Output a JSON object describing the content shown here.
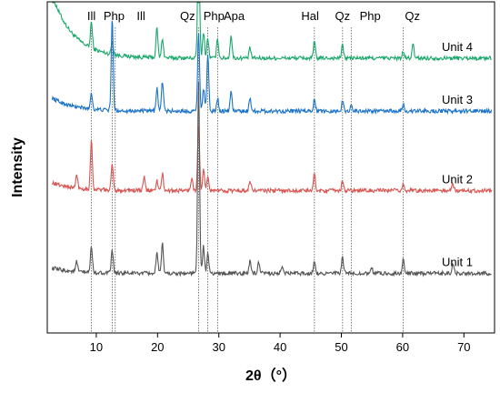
{
  "chart_data": {
    "type": "line",
    "title": "",
    "xlabel": "2θ（°）",
    "ylabel": "Intensity",
    "xlim": [
      2,
      75
    ],
    "xticks": [
      10,
      20,
      30,
      40,
      50,
      60,
      70
    ],
    "grid": false,
    "y_ticks_shown": false,
    "reference_lines": [
      {
        "label": "Ill",
        "x": 9.2
      },
      {
        "label": "Php",
        "x": 12.6
      },
      {
        "label": "Ill",
        "x": 13.1
      },
      {
        "label": "Qz",
        "x": 26.7
      },
      {
        "label": "Php",
        "x": 28.2
      },
      {
        "label": "Apa",
        "x": 29.8
      },
      {
        "label": "Hal",
        "x": 45.6
      },
      {
        "label": "Qz",
        "x": 50.2
      },
      {
        "label": "Php",
        "x": 51.6
      },
      {
        "label": "Qz",
        "x": 60.1
      }
    ],
    "phase_labels": [
      {
        "text": "Ill",
        "x": 9.2
      },
      {
        "text": "Php",
        "x": 12.9
      },
      {
        "text": "Ill",
        "x": 17.3
      },
      {
        "text": "Qz",
        "x": 24.9
      },
      {
        "text": "Php",
        "x": 29.2
      },
      {
        "text": "Apa",
        "x": 32.5
      },
      {
        "text": "Hal",
        "x": 44.9
      },
      {
        "text": "Qz",
        "x": 50.2
      },
      {
        "text": "Php",
        "x": 54.7
      },
      {
        "text": "Qz",
        "x": 61.6
      }
    ],
    "series": [
      {
        "name": "Unit 4",
        "color": "#1aa86b",
        "baseline": 0.17,
        "start_rise": 0.24,
        "peaks": [
          [
            9.2,
            0.08
          ],
          [
            12.6,
            0.04
          ],
          [
            19.9,
            0.09
          ],
          [
            20.8,
            0.06
          ],
          [
            26.7,
            0.4
          ],
          [
            27.5,
            0.08
          ],
          [
            28.2,
            0.06
          ],
          [
            29.8,
            0.06
          ],
          [
            32.0,
            0.07
          ],
          [
            35.1,
            0.03
          ],
          [
            45.6,
            0.05
          ],
          [
            50.2,
            0.04
          ],
          [
            60.1,
            0.02
          ],
          [
            61.7,
            0.04
          ]
        ]
      },
      {
        "name": "Unit 3",
        "color": "#1a73c9",
        "baseline": 0.33,
        "start_rise": 0.05,
        "peaks": [
          [
            9.2,
            0.05
          ],
          [
            12.6,
            0.28
          ],
          [
            19.9,
            0.07
          ],
          [
            20.8,
            0.09
          ],
          [
            26.7,
            0.24
          ],
          [
            27.5,
            0.07
          ],
          [
            28.2,
            0.17
          ],
          [
            29.8,
            0.04
          ],
          [
            32.0,
            0.06
          ],
          [
            35.1,
            0.04
          ],
          [
            45.6,
            0.04
          ],
          [
            50.2,
            0.03
          ],
          [
            51.6,
            0.02
          ],
          [
            60.1,
            0.02
          ]
        ]
      },
      {
        "name": "Unit 2",
        "color": "#d9534f",
        "baseline": 0.57,
        "start_rise": 0.03,
        "peaks": [
          [
            6.8,
            0.04
          ],
          [
            9.2,
            0.15
          ],
          [
            12.6,
            0.08
          ],
          [
            17.8,
            0.04
          ],
          [
            19.9,
            0.03
          ],
          [
            20.8,
            0.05
          ],
          [
            25.6,
            0.04
          ],
          [
            26.7,
            0.2
          ],
          [
            27.5,
            0.06
          ],
          [
            28.2,
            0.04
          ],
          [
            35.1,
            0.03
          ],
          [
            45.6,
            0.05
          ],
          [
            50.2,
            0.03
          ],
          [
            60.1,
            0.02
          ],
          [
            68.2,
            0.02
          ]
        ]
      },
      {
        "name": "Unit 1",
        "color": "#555555",
        "baseline": 0.82,
        "start_rise": 0.02,
        "peaks": [
          [
            6.8,
            0.03
          ],
          [
            9.2,
            0.08
          ],
          [
            12.6,
            0.07
          ],
          [
            19.9,
            0.06
          ],
          [
            20.8,
            0.09
          ],
          [
            26.7,
            0.58
          ],
          [
            27.5,
            0.08
          ],
          [
            28.2,
            0.06
          ],
          [
            35.1,
            0.04
          ],
          [
            36.5,
            0.03
          ],
          [
            40.3,
            0.02
          ],
          [
            45.6,
            0.04
          ],
          [
            50.2,
            0.05
          ],
          [
            54.9,
            0.02
          ],
          [
            60.1,
            0.04
          ],
          [
            68.2,
            0.03
          ]
        ]
      }
    ]
  }
}
